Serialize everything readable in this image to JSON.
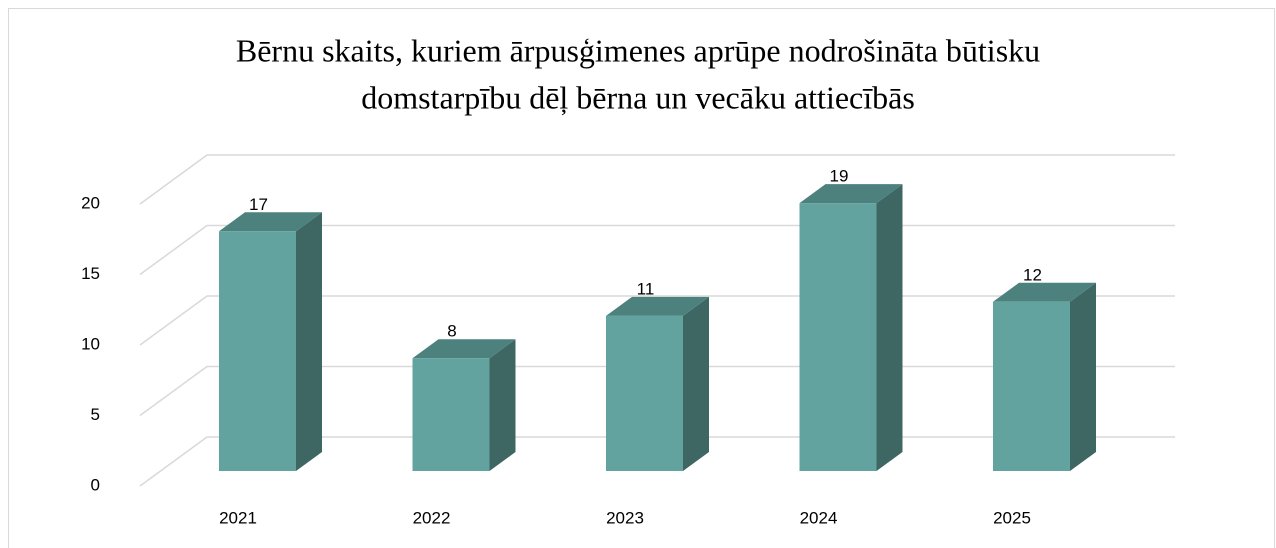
{
  "chart_data": {
    "type": "bar3d",
    "title": "Bērnu skaits, kuriem ārpusģimenes aprūpe nodrošināta būtisku domstarpību dēļ bērna un vecāku attiecībās",
    "title_lines": [
      "Bērnu skaits, kuriem ārpusģimenes aprūpe nodrošināta būtisku",
      "domstarpību dēļ bērna un vecāku attiecībās"
    ],
    "categories": [
      "2021",
      "2022",
      "2023",
      "2024",
      "2025"
    ],
    "values": [
      17,
      8,
      11,
      19,
      12
    ],
    "color": "#62a39f",
    "ylim": [
      0,
      20
    ],
    "yticks": [
      0,
      5,
      10,
      15,
      20
    ],
    "grid": true
  }
}
